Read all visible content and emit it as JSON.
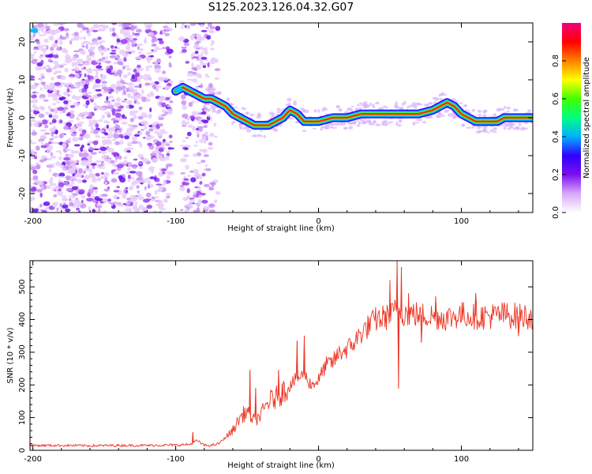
{
  "figure": {
    "title": "S125.2023.126.04.32.G07"
  },
  "chart_data": [
    {
      "type": "heatmap",
      "xlabel": "Height of straight line (km)",
      "ylabel": "Frequency (Hz)",
      "xlim": [
        -202,
        150
      ],
      "ylim": [
        -25,
        25
      ],
      "x_ticks": [
        -200,
        -100,
        0,
        100
      ],
      "y_ticks": [
        -20,
        -10,
        0,
        10,
        20
      ],
      "colorbar": {
        "label": "Normalized spectral amplitude",
        "range": [
          0,
          1
        ],
        "ticks": [
          0.0,
          0.2,
          0.4,
          0.6,
          0.8
        ],
        "colormap": [
          "#ffffff",
          "#d8a8f8",
          "#7a10f0",
          "#3000ff",
          "#00b0ff",
          "#00ff80",
          "#40ff00",
          "#ffff00",
          "#ff8000",
          "#ff0000",
          "#f00080"
        ]
      },
      "noise_region_km": [
        -202,
        -70
      ],
      "ridge": {
        "x": [
          -200,
          -195,
          -100,
          -95,
          -80,
          -75,
          -70,
          -65,
          -60,
          -55,
          -50,
          -45,
          -40,
          -35,
          -30,
          -25,
          -20,
          -15,
          -10,
          -5,
          0,
          10,
          20,
          30,
          40,
          50,
          60,
          70,
          80,
          85,
          90,
          95,
          100,
          105,
          110,
          115,
          120,
          125,
          130,
          140,
          150
        ],
        "y": [
          23,
          23,
          7,
          8,
          5,
          5,
          4,
          3,
          1,
          0,
          -1,
          -2,
          -2,
          -2,
          -1,
          0,
          2,
          1,
          -1,
          -1,
          -1,
          0,
          0,
          1,
          1,
          1,
          1,
          1,
          2,
          3,
          4,
          3,
          1,
          0,
          -1,
          -1,
          -1,
          -1,
          0,
          0,
          0
        ]
      }
    },
    {
      "type": "line",
      "xlabel": "Height of straight line (km)",
      "ylabel": "SNR (10 * v/v)",
      "xlim": [
        -202,
        150
      ],
      "ylim": [
        0,
        580
      ],
      "x_ticks": [
        -200,
        -100,
        0,
        100
      ],
      "y_ticks": [
        0,
        100,
        200,
        300,
        400,
        500
      ],
      "series": [
        {
          "color": "#ee3322",
          "x": [
            -202,
            -180,
            -160,
            -140,
            -120,
            -100,
            -90,
            -85,
            -80,
            -75,
            -70,
            -65,
            -60,
            -55,
            -50,
            -45,
            -40,
            -35,
            -30,
            -25,
            -20,
            -15,
            -10,
            -5,
            0,
            5,
            10,
            15,
            20,
            25,
            30,
            40,
            50,
            55,
            60,
            70,
            80,
            90,
            100,
            110,
            120,
            130,
            140,
            150
          ],
          "values": [
            15,
            15,
            14,
            15,
            15,
            16,
            18,
            30,
            15,
            15,
            20,
            40,
            60,
            100,
            120,
            90,
            110,
            150,
            160,
            180,
            200,
            220,
            230,
            200,
            215,
            260,
            270,
            300,
            310,
            330,
            360,
            400,
            410,
            430,
            420,
            415,
            410,
            405,
            415,
            410,
            410,
            415,
            410,
            410
          ],
          "spikes": [
            {
              "x": -88,
              "y": 55
            },
            {
              "x": -60,
              "y": 75
            },
            {
              "x": -48,
              "y": 245
            },
            {
              "x": -44,
              "y": 190
            },
            {
              "x": -28,
              "y": 245
            },
            {
              "x": -15,
              "y": 335
            },
            {
              "x": -10,
              "y": 350
            },
            {
              "x": 50,
              "y": 520
            },
            {
              "x": 55,
              "y": 580
            },
            {
              "x": 56,
              "y": 190
            },
            {
              "x": 58,
              "y": 560
            },
            {
              "x": 63,
              "y": 480
            },
            {
              "x": 72,
              "y": 330
            },
            {
              "x": 82,
              "y": 470
            },
            {
              "x": 110,
              "y": 480
            },
            {
              "x": 140,
              "y": 350
            }
          ]
        }
      ]
    }
  ]
}
